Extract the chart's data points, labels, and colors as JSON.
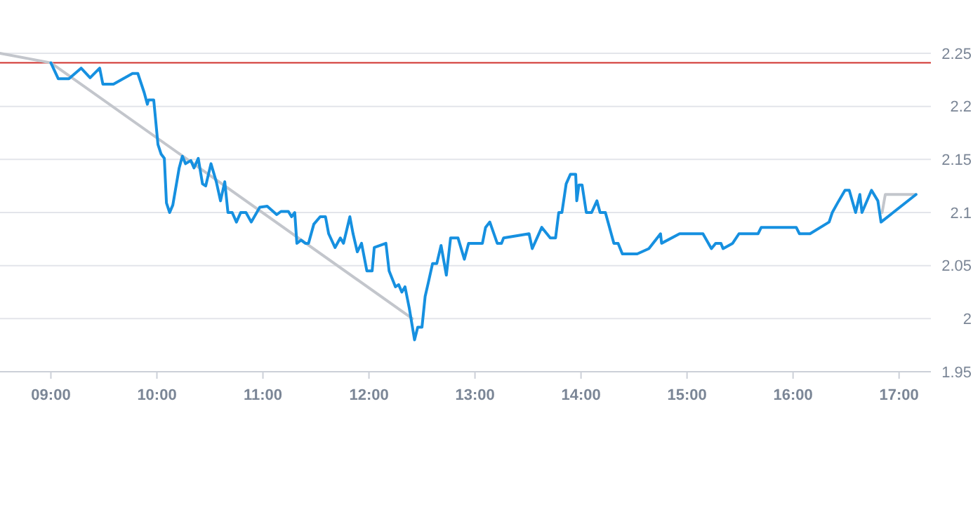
{
  "chart_data": {
    "type": "line",
    "xlim": [
      8.52,
      17.3
    ],
    "ylim": [
      1.95,
      2.25
    ],
    "xticks": [
      {
        "value": 9,
        "label": "09:00"
      },
      {
        "value": 10,
        "label": "10:00"
      },
      {
        "value": 11,
        "label": "11:00"
      },
      {
        "value": 12,
        "label": "12:00"
      },
      {
        "value": 13,
        "label": "13:00"
      },
      {
        "value": 14,
        "label": "14:00"
      },
      {
        "value": 15,
        "label": "15:00"
      },
      {
        "value": 16,
        "label": "16:00"
      },
      {
        "value": 17,
        "label": "17:00"
      }
    ],
    "yticks": [
      1.95,
      2,
      2.05,
      2.1,
      2.15,
      2.2,
      2.25
    ],
    "grid": "y",
    "marker": "none",
    "line_style": "solid",
    "ref_lines": [
      {
        "axis": "y",
        "value": 2.241,
        "color": "#d0302c"
      }
    ],
    "series": [
      {
        "color": "#c3c6cc",
        "x": [
          8.52,
          9.0,
          12.41,
          14.6,
          16.84,
          16.87,
          17.16
        ],
        "values": [
          2.25,
          2.241,
          2.0,
          null,
          2.1,
          2.117,
          2.117
        ]
      },
      {
        "color": "#1690e0",
        "x": [
          9.0,
          9.07,
          9.17,
          9.285,
          9.37,
          9.46,
          9.49,
          9.59,
          9.77,
          9.82,
          9.88,
          9.91,
          9.92,
          9.97,
          10.01,
          10.04,
          10.07,
          10.09,
          10.12,
          10.15,
          10.21,
          10.24,
          10.27,
          10.32,
          10.35,
          10.39,
          10.43,
          10.46,
          10.51,
          10.56,
          10.6,
          10.64,
          10.67,
          10.71,
          10.75,
          10.79,
          10.84,
          10.89,
          10.97,
          11.04,
          11.13,
          11.17,
          11.24,
          11.27,
          11.3,
          11.32,
          11.36,
          11.4,
          11.43,
          11.48,
          11.54,
          11.59,
          11.62,
          11.68,
          11.73,
          11.76,
          11.82,
          11.85,
          11.89,
          11.93,
          11.98,
          12.03,
          12.05,
          12.16,
          12.19,
          12.25,
          12.28,
          12.31,
          12.34,
          12.38,
          12.41,
          12.43,
          12.46,
          12.5,
          12.53,
          12.56,
          12.6,
          12.64,
          12.68,
          12.73,
          12.77,
          12.84,
          12.9,
          12.94,
          13.07,
          13.1,
          13.14,
          13.21,
          13.25,
          13.27,
          13.51,
          13.54,
          13.63,
          13.71,
          13.76,
          13.79,
          13.82,
          13.86,
          13.9,
          13.95,
          13.96,
          13.98,
          14.01,
          14.05,
          14.1,
          14.15,
          14.18,
          14.23,
          14.31,
          14.35,
          14.39,
          14.53,
          14.64,
          14.75,
          14.76,
          14.93,
          15.15,
          15.23,
          15.27,
          15.32,
          15.34,
          15.43,
          15.49,
          15.67,
          15.7,
          16.03,
          16.06,
          16.16,
          16.34,
          16.37,
          16.42,
          16.49,
          16.53,
          16.59,
          16.63,
          16.65,
          16.74,
          16.8,
          16.83,
          17.16
        ],
        "values": [
          2.241,
          2.226,
          2.226,
          2.236,
          2.227,
          2.236,
          2.221,
          2.221,
          2.231,
          2.231,
          2.213,
          2.202,
          2.206,
          2.206,
          2.164,
          2.155,
          2.151,
          2.109,
          2.1,
          2.107,
          2.142,
          2.153,
          2.146,
          2.149,
          2.142,
          2.151,
          2.127,
          2.125,
          2.146,
          2.129,
          2.111,
          2.129,
          2.1,
          2.1,
          2.091,
          2.1,
          2.1,
          2.091,
          2.105,
          2.106,
          2.098,
          2.101,
          2.101,
          2.096,
          2.1,
          2.071,
          2.074,
          2.071,
          2.071,
          2.089,
          2.096,
          2.096,
          2.08,
          2.067,
          2.076,
          2.071,
          2.096,
          2.08,
          2.063,
          2.071,
          2.045,
          2.045,
          2.067,
          2.071,
          2.045,
          2.03,
          2.032,
          2.025,
          2.03,
          2.01,
          1.992,
          1.98,
          1.992,
          1.992,
          2.021,
          2.034,
          2.052,
          2.052,
          2.069,
          2.041,
          2.076,
          2.076,
          2.056,
          2.071,
          2.071,
          2.086,
          2.091,
          2.071,
          2.071,
          2.076,
          2.08,
          2.066,
          2.086,
          2.076,
          2.076,
          2.1,
          2.1,
          2.127,
          2.136,
          2.136,
          2.111,
          2.126,
          2.126,
          2.1,
          2.1,
          2.111,
          2.1,
          2.1,
          2.071,
          2.071,
          2.061,
          2.061,
          2.066,
          2.08,
          2.071,
          2.08,
          2.08,
          2.066,
          2.071,
          2.071,
          2.066,
          2.071,
          2.08,
          2.08,
          2.086,
          2.086,
          2.08,
          2.08,
          2.091,
          2.1,
          2.109,
          2.121,
          2.121,
          2.1,
          2.117,
          2.1,
          2.121,
          2.111,
          2.091,
          2.117
        ]
      }
    ]
  }
}
